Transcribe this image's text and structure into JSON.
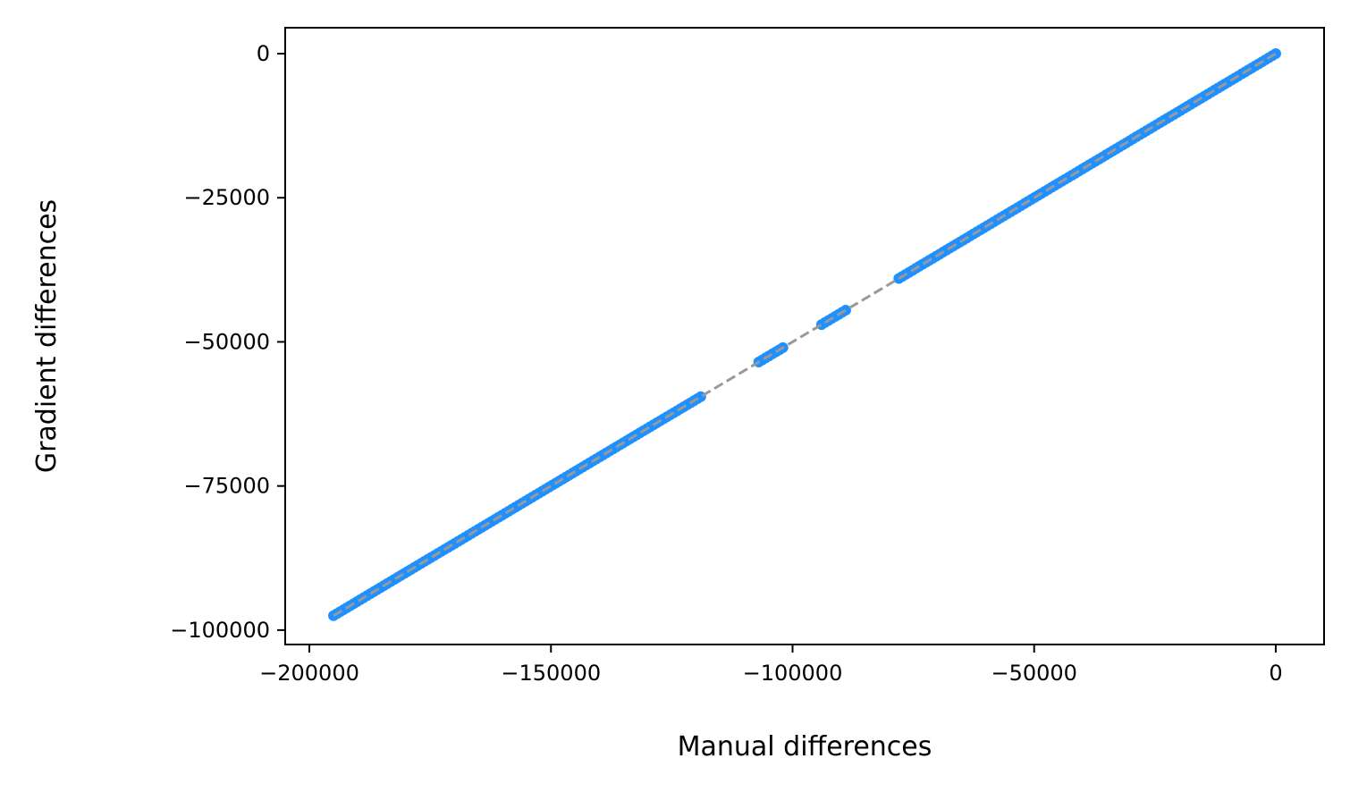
{
  "chart_data": {
    "type": "scatter",
    "xlabel": "Manual differences",
    "ylabel": "Gradient differences",
    "xlim": [
      -205000,
      10000
    ],
    "ylim": [
      -102500,
      4500
    ],
    "xticks": [
      -200000,
      -150000,
      -100000,
      -50000,
      0
    ],
    "yticks": [
      0,
      -25000,
      -50000,
      -75000,
      -100000
    ],
    "xtick_labels": [
      "−200000",
      "−150000",
      "−100000",
      "−50000",
      "0"
    ],
    "ytick_labels": [
      "0",
      "−25000",
      "−50000",
      "−75000",
      "−100000"
    ],
    "grid": false,
    "legend": "none",
    "point_color": "#1e90ff",
    "reference_line": {
      "style": "dashed",
      "color": "#999999",
      "from": [
        -195000,
        -97500
      ],
      "to": [
        0,
        0
      ]
    },
    "point_segments": [
      {
        "x_start": -195000,
        "x_end": -119000,
        "slope": 0.5
      },
      {
        "x_start": -107000,
        "x_end": -102000,
        "slope": 0.5
      },
      {
        "x_start": -94000,
        "x_end": -89000,
        "slope": 0.5
      },
      {
        "x_start": -78000,
        "x_end": 0,
        "slope": 0.5
      }
    ]
  }
}
